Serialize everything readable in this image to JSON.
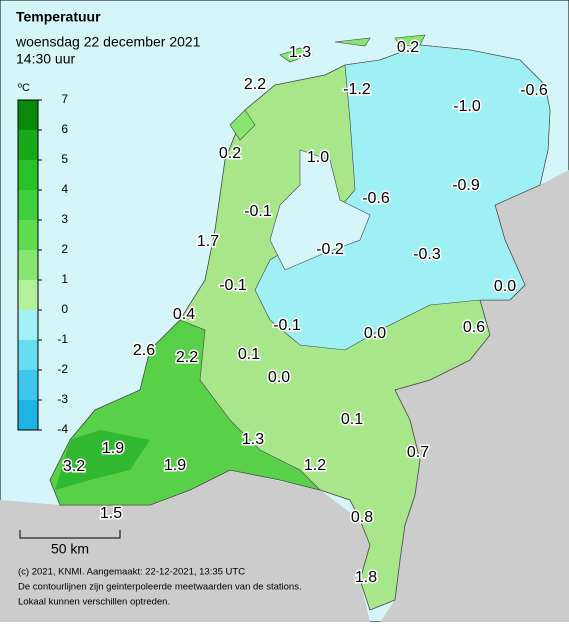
{
  "header": {
    "title": "Temperatuur",
    "date": "woensdag 22 december 2021",
    "time": "14:30 uur"
  },
  "legend": {
    "unit": "ºC",
    "ticks": [
      7,
      6,
      5,
      4,
      3,
      2,
      1,
      0,
      -1,
      -2,
      -3,
      -4
    ],
    "colors": [
      "#0a8a0a",
      "#18a818",
      "#28c028",
      "#3ed03e",
      "#5edc4e",
      "#86e670",
      "#b4f09c",
      "#a0f0f4",
      "#66dcf0",
      "#3cc8ec",
      "#20b4e4"
    ]
  },
  "stations": [
    "1.3",
    "0.2",
    "2.2",
    "-1.2",
    "-1.0",
    "-0.6",
    "0.2",
    "1.0",
    "-0.1",
    "-0.6",
    "-0.9",
    "1.7",
    "-0.2",
    "-0.3",
    "-0.1",
    "0.0",
    "0.4",
    "-0.1",
    "0.0",
    "0.6",
    "2.6",
    "2.2",
    "0.1",
    "0.0",
    "0.1",
    "1.9",
    "1.3",
    "0.7",
    "3.2",
    "1.9",
    "1.2",
    "1.5",
    "0.8",
    "1.8"
  ],
  "scale": "50 km",
  "footer": [
    "(c) 2021, KNMI. Aangemaakt: 22-12-2021, 13:35 UTC",
    "De contourlijnen zijn geinterpoleerde meetwaarden van de stations.",
    "Lokaal kunnen verschillen optreden."
  ]
}
